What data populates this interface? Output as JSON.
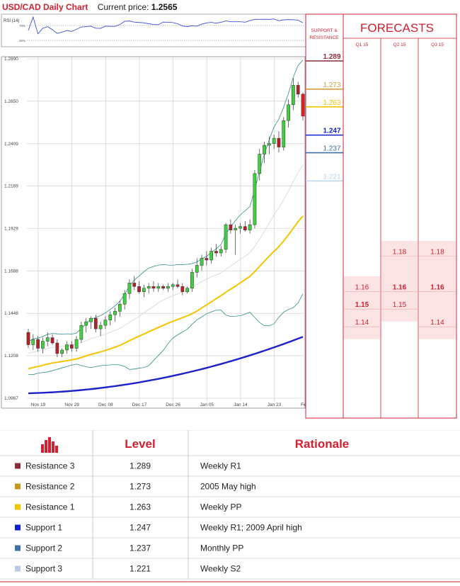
{
  "header": {
    "title": "USD/CAD Daily Chart",
    "price_label": "Current price:",
    "price_value": "1.2565"
  },
  "rsi": {
    "label": "RSI (14)",
    "levels": [
      "70%",
      "30%"
    ]
  },
  "chart_data": {
    "type": "candlestick",
    "pair": "USD/CAD",
    "y_ticks": [
      "1.2890",
      "1.2650",
      "1.2409",
      "1.2169",
      "1.1929",
      "1.1688",
      "1.1448",
      "1.1208",
      "1.0967"
    ],
    "x_ticks": [
      "Nov 19",
      "Nov 28",
      "Dec 08",
      "Dec 17",
      "Dec 26",
      "Jan 05",
      "Jan 14",
      "Jan 23",
      "Feb 02"
    ],
    "ylim": [
      1.0967,
      1.289
    ],
    "current_price": 1.2565,
    "candles": [
      [
        1.134,
        1.136,
        1.125,
        1.127
      ],
      [
        1.127,
        1.133,
        1.124,
        1.13
      ],
      [
        1.13,
        1.132,
        1.123,
        1.125
      ],
      [
        1.125,
        1.131,
        1.122,
        1.129
      ],
      [
        1.129,
        1.134,
        1.126,
        1.131
      ],
      [
        1.131,
        1.133,
        1.127,
        1.128
      ],
      [
        1.128,
        1.13,
        1.12,
        1.122
      ],
      [
        1.122,
        1.125,
        1.12,
        1.124
      ],
      [
        1.124,
        1.129,
        1.122,
        1.127
      ],
      [
        1.127,
        1.129,
        1.123,
        1.125
      ],
      [
        1.125,
        1.132,
        1.123,
        1.13
      ],
      [
        1.13,
        1.14,
        1.128,
        1.138
      ],
      [
        1.138,
        1.142,
        1.134,
        1.14
      ],
      [
        1.14,
        1.143,
        1.136,
        1.142
      ],
      [
        1.142,
        1.144,
        1.134,
        1.136
      ],
      [
        1.136,
        1.14,
        1.132,
        1.138
      ],
      [
        1.138,
        1.143,
        1.136,
        1.141
      ],
      [
        1.141,
        1.146,
        1.138,
        1.144
      ],
      [
        1.144,
        1.148,
        1.14,
        1.146
      ],
      [
        1.146,
        1.152,
        1.143,
        1.15
      ],
      [
        1.15,
        1.158,
        1.147,
        1.156
      ],
      [
        1.156,
        1.164,
        1.153,
        1.162
      ],
      [
        1.162,
        1.166,
        1.158,
        1.16
      ],
      [
        1.16,
        1.163,
        1.156,
        1.157
      ],
      [
        1.157,
        1.161,
        1.154,
        1.159
      ],
      [
        1.159,
        1.162,
        1.156,
        1.16
      ],
      [
        1.16,
        1.163,
        1.157,
        1.159
      ],
      [
        1.159,
        1.162,
        1.157,
        1.16
      ],
      [
        1.16,
        1.161,
        1.158,
        1.159
      ],
      [
        1.159,
        1.162,
        1.157,
        1.16
      ],
      [
        1.16,
        1.162,
        1.158,
        1.161
      ],
      [
        1.161,
        1.164,
        1.159,
        1.16
      ],
      [
        1.16,
        1.162,
        1.155,
        1.157
      ],
      [
        1.157,
        1.16,
        1.156,
        1.159
      ],
      [
        1.159,
        1.17,
        1.157,
        1.168
      ],
      [
        1.168,
        1.176,
        1.165,
        1.172
      ],
      [
        1.172,
        1.178,
        1.169,
        1.176
      ],
      [
        1.176,
        1.18,
        1.172,
        1.175
      ],
      [
        1.175,
        1.182,
        1.173,
        1.18
      ],
      [
        1.18,
        1.184,
        1.177,
        1.179
      ],
      [
        1.179,
        1.183,
        1.177,
        1.181
      ],
      [
        1.181,
        1.196,
        1.179,
        1.195
      ],
      [
        1.195,
        1.198,
        1.19,
        1.192
      ],
      [
        1.192,
        1.195,
        1.178,
        1.193
      ],
      [
        1.193,
        1.196,
        1.19,
        1.194
      ],
      [
        1.194,
        1.197,
        1.191,
        1.192
      ],
      [
        1.192,
        1.198,
        1.19,
        1.195
      ],
      [
        1.195,
        1.226,
        1.193,
        1.224
      ],
      [
        1.224,
        1.238,
        1.22,
        1.235
      ],
      [
        1.235,
        1.242,
        1.23,
        1.24
      ],
      [
        1.24,
        1.245,
        1.235,
        1.241
      ],
      [
        1.241,
        1.246,
        1.238,
        1.244
      ],
      [
        1.244,
        1.248,
        1.236,
        1.239
      ],
      [
        1.239,
        1.256,
        1.237,
        1.254
      ],
      [
        1.254,
        1.266,
        1.25,
        1.263
      ],
      [
        1.263,
        1.278,
        1.26,
        1.274
      ],
      [
        1.274,
        1.276,
        1.267,
        1.269
      ],
      [
        1.269,
        1.27,
        1.254,
        1.2565
      ]
    ],
    "support_resistance": [
      {
        "name": "Resistance 3",
        "value": 1.289,
        "label": "1.289",
        "color": "#8b2c3b"
      },
      {
        "name": "Resistance 2",
        "value": 1.273,
        "label": "1.273",
        "color": "#d4a03c"
      },
      {
        "name": "Resistance 1",
        "value": 1.263,
        "label": "1.263",
        "color": "#f5c400"
      },
      {
        "name": "Support 1",
        "value": 1.247,
        "label": "1.247",
        "color": "#0d1fd0"
      },
      {
        "name": "Support 2",
        "value": 1.237,
        "label": "1.237",
        "color": "#3d6fa8"
      },
      {
        "name": "Support 3",
        "value": 1.221,
        "label": "1.221",
        "color": "#b9d4e6"
      }
    ]
  },
  "sr_panel": {
    "label_line1": "SUPPORT &",
    "label_line2": "RESISTANCE"
  },
  "forecasts": {
    "title": "FORECASTS",
    "quarters": [
      "Q1 15",
      "Q2 15",
      "Q3 15"
    ],
    "values": [
      [
        "1.16",
        "1.15",
        "1.14"
      ],
      [
        "1.18",
        "1.16",
        "1.15"
      ],
      [
        "1.18",
        "1.16",
        "1.14"
      ]
    ]
  },
  "table": {
    "headers": [
      "Level",
      "Rationale"
    ],
    "rows": [
      {
        "name": "Resistance 3",
        "level": "1.289",
        "rationale": "Weekly R1",
        "color": "#8b2c3b"
      },
      {
        "name": "Resistance 2",
        "level": "1.273",
        "rationale": "2005 May high",
        "color": "#c59a1a"
      },
      {
        "name": "Resistance 1",
        "level": "1.263",
        "rationale": "Weekly PP",
        "color": "#f5c400"
      },
      {
        "name": "Support 1",
        "level": "1.247",
        "rationale": "Weekly R1; 2009 April high",
        "color": "#0d1fd0"
      },
      {
        "name": "Support 2",
        "level": "1.237",
        "rationale": "Monthly PP",
        "color": "#3d6fa8"
      },
      {
        "name": "Support 3",
        "level": "1.221",
        "rationale": "Weekly S2",
        "color": "#b9c9e6"
      }
    ]
  }
}
